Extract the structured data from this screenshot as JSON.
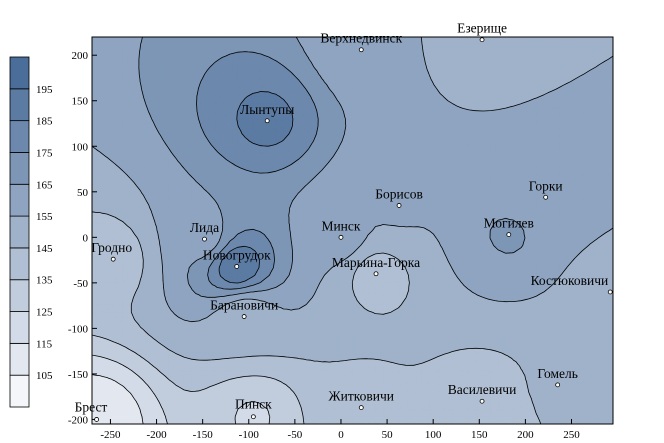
{
  "chart_data": {
    "type": "heatmap",
    "subtype": "filled-contour-map",
    "title": "",
    "xlabel": "",
    "ylabel": "",
    "xlim": [
      -270,
      295
    ],
    "ylim": [
      -205,
      220
    ],
    "x_ticks": [
      -250,
      -200,
      -150,
      -100,
      -50,
      0,
      50,
      100,
      150,
      200,
      250
    ],
    "y_ticks": [
      -200,
      -150,
      -100,
      -50,
      0,
      50,
      100,
      150,
      200
    ],
    "grid": false,
    "contour_levels": [
      105,
      115,
      125,
      135,
      145,
      155,
      165,
      175,
      185,
      195
    ],
    "colors": {
      "band_min": "#f4f6fa",
      "band_max": "#4a6d99",
      "contour_line": "#000000",
      "point_fill": "#ffffff"
    },
    "legend": {
      "placement": "left",
      "labels": [
        "105",
        "115",
        "125",
        "135",
        "145",
        "155",
        "165",
        "175",
        "185",
        "195"
      ]
    },
    "stations": [
      {
        "name": "Брест",
        "x": -265,
        "y": -200,
        "value": 107
      },
      {
        "name": "Пинск",
        "x": -95,
        "y": -197,
        "value": 124
      },
      {
        "name": "Житковичи",
        "x": 22,
        "y": -187,
        "value": 143
      },
      {
        "name": "Василевичи",
        "x": 153,
        "y": -180,
        "value": 140
      },
      {
        "name": "Гомель",
        "x": 235,
        "y": -162,
        "value": 146
      },
      {
        "name": "Барановичи",
        "x": -105,
        "y": -87,
        "value": 146
      },
      {
        "name": "Новогрудок",
        "x": -113,
        "y": -32,
        "value": 195
      },
      {
        "name": "Гродно",
        "x": -247,
        "y": -24,
        "value": 140
      },
      {
        "name": "Лида",
        "x": -148,
        "y": -2,
        "value": 160
      },
      {
        "name": "Минск",
        "x": 0,
        "y": 0,
        "value": 160
      },
      {
        "name": "Марьина-Горка",
        "x": 38,
        "y": -40,
        "value": 140
      },
      {
        "name": "Борисов",
        "x": 63,
        "y": 35,
        "value": 156
      },
      {
        "name": "Могилев",
        "x": 182,
        "y": 3,
        "value": 166
      },
      {
        "name": "Горки",
        "x": 222,
        "y": 44,
        "value": 160
      },
      {
        "name": "Костюковичи",
        "x": 292,
        "y": -60,
        "value": 150
      },
      {
        "name": "Лынтупы",
        "x": -80,
        "y": 128,
        "value": 188
      },
      {
        "name": "Верхнедвинск",
        "x": 22,
        "y": 206,
        "value": 158
      },
      {
        "name": "Езерище",
        "x": 153,
        "y": 217,
        "value": 150
      }
    ]
  }
}
